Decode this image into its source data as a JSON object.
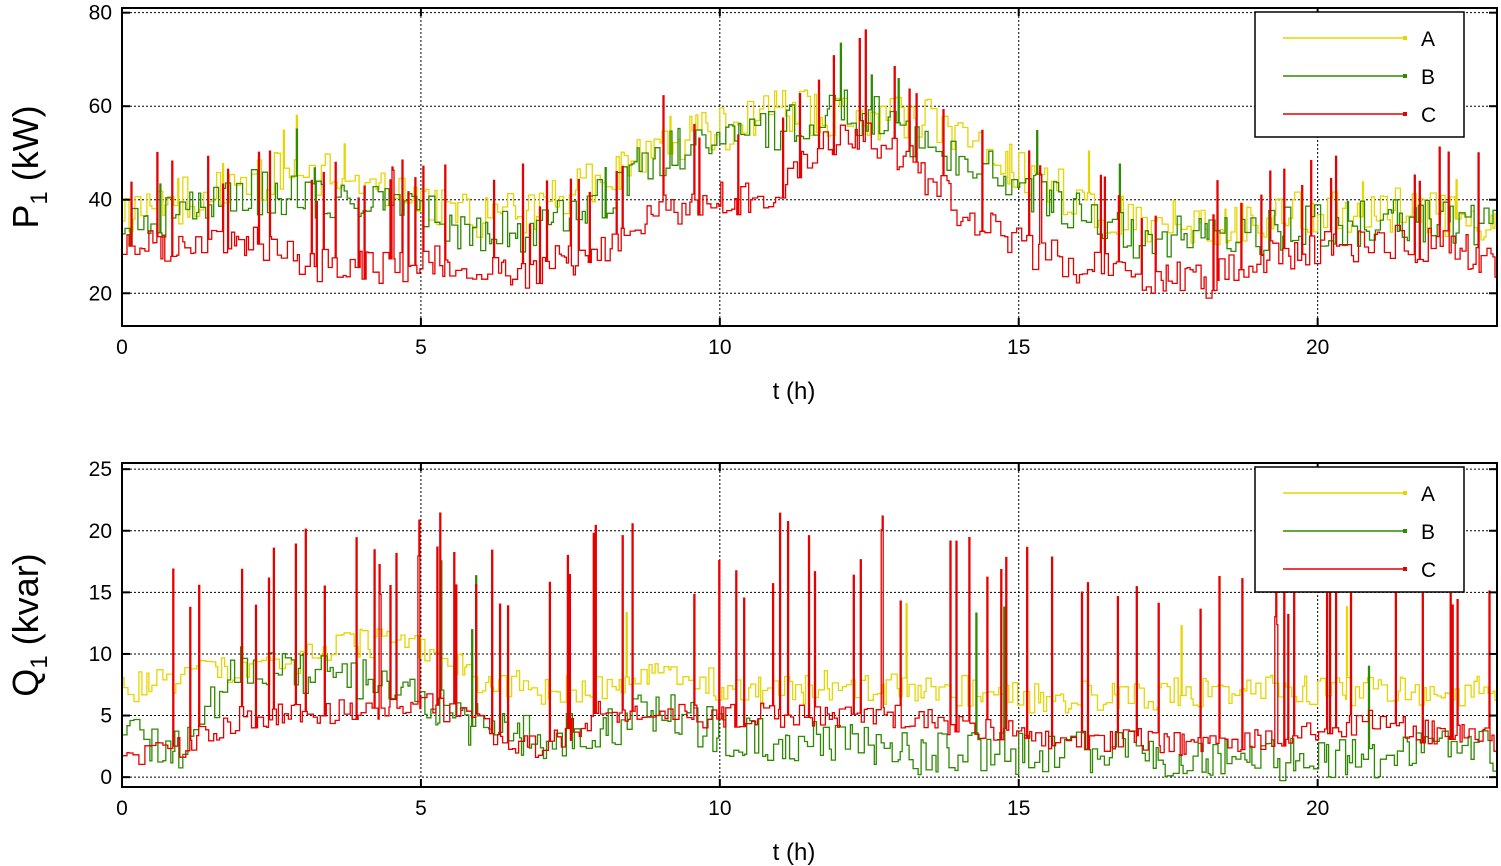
{
  "chart_data": [
    {
      "type": "line",
      "title": "",
      "xlabel": "t (h)",
      "ylabel": "P",
      "ylabel_sub": "1",
      "ylabel_unit": "(kW)",
      "xlim": [
        0,
        23
      ],
      "ylim": [
        13,
        81
      ],
      "xticks": [
        0,
        5,
        10,
        15,
        20
      ],
      "yticks": [
        20,
        40,
        60,
        80
      ],
      "grid": true,
      "legend_position": "top-right",
      "profile_t": [
        0,
        1,
        2,
        3,
        4,
        5,
        6,
        7,
        8,
        9,
        10,
        11,
        12,
        13,
        14,
        15,
        16,
        17,
        18,
        19,
        20,
        21,
        22,
        23
      ],
      "series": [
        {
          "name": "A",
          "color": "#e6d600",
          "baseline": [
            35,
            40,
            44,
            46,
            45,
            40,
            36,
            38,
            44,
            52,
            55,
            60,
            57,
            58,
            55,
            46,
            40,
            35,
            35,
            36,
            38,
            38,
            37,
            36
          ],
          "noise": 5,
          "spikes": 10,
          "spike_height": 10
        },
        {
          "name": "B",
          "color": "#2e8b00",
          "baseline": [
            33,
            38,
            42,
            40,
            38,
            38,
            32,
            34,
            40,
            50,
            52,
            55,
            60,
            55,
            50,
            42,
            37,
            32,
            33,
            33,
            34,
            35,
            35,
            35
          ],
          "noise": 5,
          "spikes": 10,
          "spike_height": 15
        },
        {
          "name": "C",
          "color": "#e60000",
          "baseline": [
            30,
            31,
            32,
            27,
            25,
            27,
            24,
            25,
            30,
            37,
            40,
            42,
            55,
            50,
            38,
            30,
            26,
            24,
            22,
            27,
            30,
            31,
            30,
            27
          ],
          "noise": 4,
          "spikes": 70,
          "spike_height": 22
        }
      ]
    },
    {
      "type": "line",
      "title": "",
      "xlabel": "t (h)",
      "ylabel": "Q",
      "ylabel_sub": "1",
      "ylabel_unit": "(kvar)",
      "xlim": [
        0,
        23
      ],
      "ylim": [
        -0.8,
        25.5
      ],
      "xticks": [
        0,
        5,
        10,
        15,
        20
      ],
      "yticks": [
        0,
        5,
        10,
        15,
        20,
        25
      ],
      "grid": true,
      "legend_position": "top-right",
      "profile_t": [
        0,
        1,
        2,
        3,
        4,
        5,
        6,
        7,
        8,
        9,
        10,
        11,
        12,
        13,
        14,
        15,
        16,
        17,
        18,
        19,
        20,
        21,
        22,
        23
      ],
      "series": [
        {
          "name": "A",
          "color": "#e6d600",
          "baseline": [
            7,
            8,
            9,
            9.5,
            11,
            10.5,
            8,
            7,
            7.5,
            8,
            7.5,
            7,
            7.5,
            7,
            7,
            6.5,
            6.5,
            6.5,
            7,
            7,
            7,
            7,
            7,
            7
          ],
          "noise": 1.3,
          "spikes": 6,
          "spike_height": 8
        },
        {
          "name": "B",
          "color": "#2e8b00",
          "baseline": [
            3,
            2.5,
            9,
            8.5,
            8,
            6,
            4,
            3,
            4,
            5.5,
            3.5,
            3,
            3,
            2,
            2,
            2,
            2,
            2,
            1.5,
            1.5,
            1.5,
            1.5,
            2,
            2
          ],
          "noise": 1.8,
          "spikes": 6,
          "spike_height": 12
        },
        {
          "name": "C",
          "color": "#e60000",
          "baseline": [
            1.5,
            2.5,
            5,
            5,
            5.5,
            6,
            4,
            2,
            5.5,
            5,
            5,
            5,
            5,
            5,
            4,
            3.5,
            3,
            3,
            2.5,
            3,
            4,
            4.5,
            3.5,
            3
          ],
          "noise": 1.0,
          "spikes": 80,
          "spike_height": 16
        }
      ]
    }
  ]
}
